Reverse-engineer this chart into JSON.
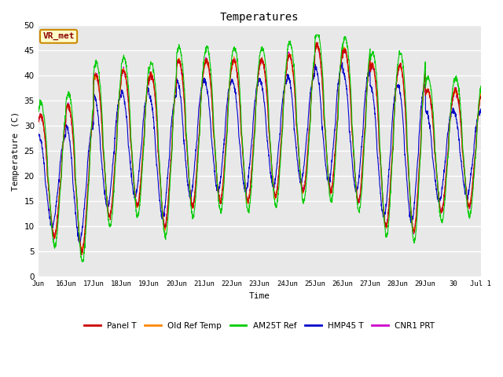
{
  "title": "Temperatures",
  "xlabel": "Time",
  "ylabel": "Temperature (C)",
  "annotation": "VR_met",
  "ylim": [
    0,
    50
  ],
  "yticks": [
    0,
    5,
    10,
    15,
    20,
    25,
    30,
    35,
    40,
    45,
    50
  ],
  "xtick_labels": [
    "Jun",
    "16Jun",
    "17Jun",
    "18Jun",
    "19Jun",
    "20Jun",
    "21Jun",
    "22Jun",
    "23Jun",
    "24Jun",
    "25Jun",
    "26Jun",
    "27Jun",
    "28Jun",
    "29Jun",
    "30",
    "Jul 1"
  ],
  "legend": [
    {
      "label": "Panel T",
      "color": "#cc0000"
    },
    {
      "label": "Old Ref Temp",
      "color": "#ff8800"
    },
    {
      "label": "AM25T Ref",
      "color": "#00cc00"
    },
    {
      "label": "HMP45 T",
      "color": "#0000cc"
    },
    {
      "label": "CNR1 PRT",
      "color": "#cc00cc"
    }
  ],
  "fig_bg": "#ffffff",
  "plot_bg": "#e8e8e8",
  "grid_color": "#ffffff"
}
